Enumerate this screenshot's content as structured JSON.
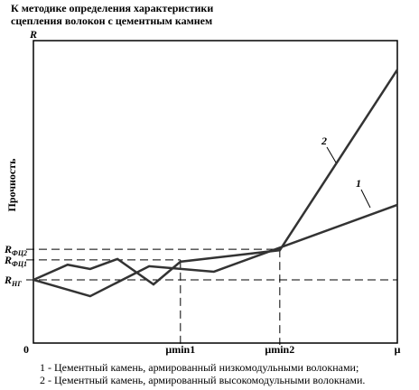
{
  "chart_data": {
    "type": "line",
    "title": [
      "К методике определения характеристики",
      "сцепления волокон с цементным камнем"
    ],
    "ylabel": "Прочность",
    "yaxis_name": "R",
    "xlim": [
      0,
      100
    ],
    "ylim": [
      0,
      100
    ],
    "xticks": [
      0,
      {
        "value": 40.4,
        "label": "μmin1"
      },
      {
        "value": 67.7,
        "label": "μmin2"
      },
      {
        "value": 100,
        "label": "μ"
      }
    ],
    "yticks": [
      {
        "value": 31.0,
        "label": "R",
        "sub": "ФЦ2"
      },
      {
        "value": 27.5,
        "label": "R",
        "sub": "ФЦ1"
      },
      {
        "value": 20.9,
        "label": "R",
        "sub": "НГ"
      }
    ],
    "series": [
      {
        "name": "1",
        "color": "#333333",
        "x": [
          0,
          15.6,
          31.8,
          49.6,
          100
        ],
        "values": [
          20.9,
          15.5,
          25.4,
          23.6,
          45.7
        ]
      },
      {
        "name": "2",
        "color": "#333333",
        "x": [
          0,
          9.4,
          15.6,
          23.1,
          33.0,
          40.4,
          67.7,
          100
        ],
        "values": [
          20.9,
          25.9,
          24.5,
          27.8,
          19.4,
          26.9,
          30.7,
          90.4
        ]
      }
    ],
    "notes": [
      "1 - Цементный камень, армированный низкомодульными волокнами;",
      "2 - Цементный камень, армированный высокомодульными волокнами."
    ]
  }
}
